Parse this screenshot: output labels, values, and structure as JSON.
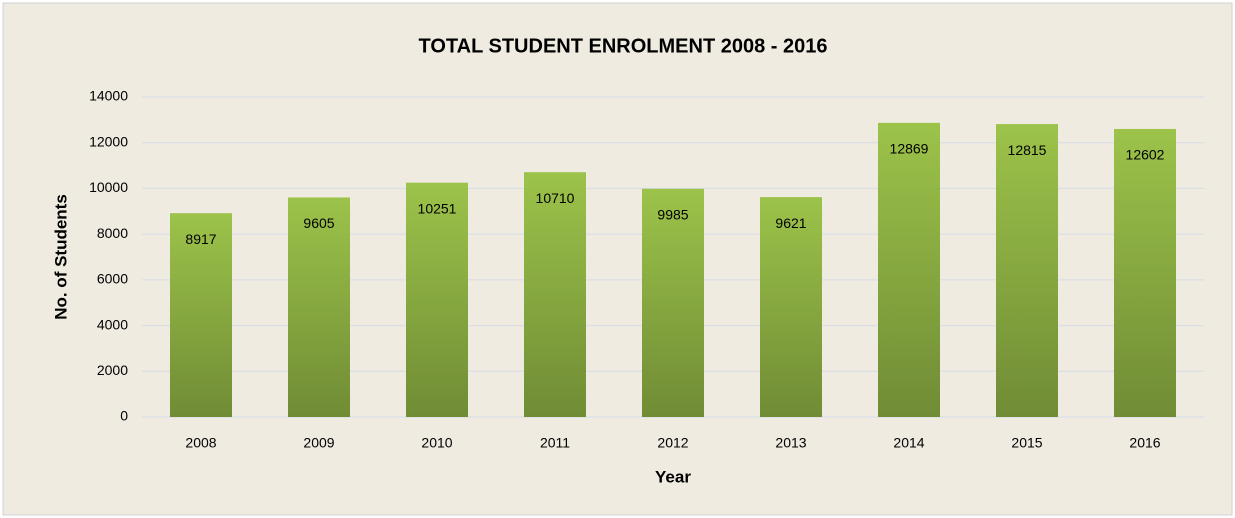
{
  "chart_data": {
    "type": "bar",
    "title": "TOTAL STUDENT ENROLMENT 2008 - 2016",
    "x_label": "Year",
    "y_label": "No. of Students",
    "categories": [
      "2008",
      "2009",
      "2010",
      "2011",
      "2012",
      "2013",
      "2014",
      "2015",
      "2016"
    ],
    "values": [
      8917,
      9605,
      10251,
      10710,
      9985,
      9621,
      12869,
      12815,
      12602
    ],
    "color": "#9cc34a",
    "ylim": [
      0,
      14000
    ],
    "yticks": [
      0,
      2000,
      4000,
      6000,
      8000,
      10000,
      12000,
      14000
    ],
    "grid": true
  }
}
